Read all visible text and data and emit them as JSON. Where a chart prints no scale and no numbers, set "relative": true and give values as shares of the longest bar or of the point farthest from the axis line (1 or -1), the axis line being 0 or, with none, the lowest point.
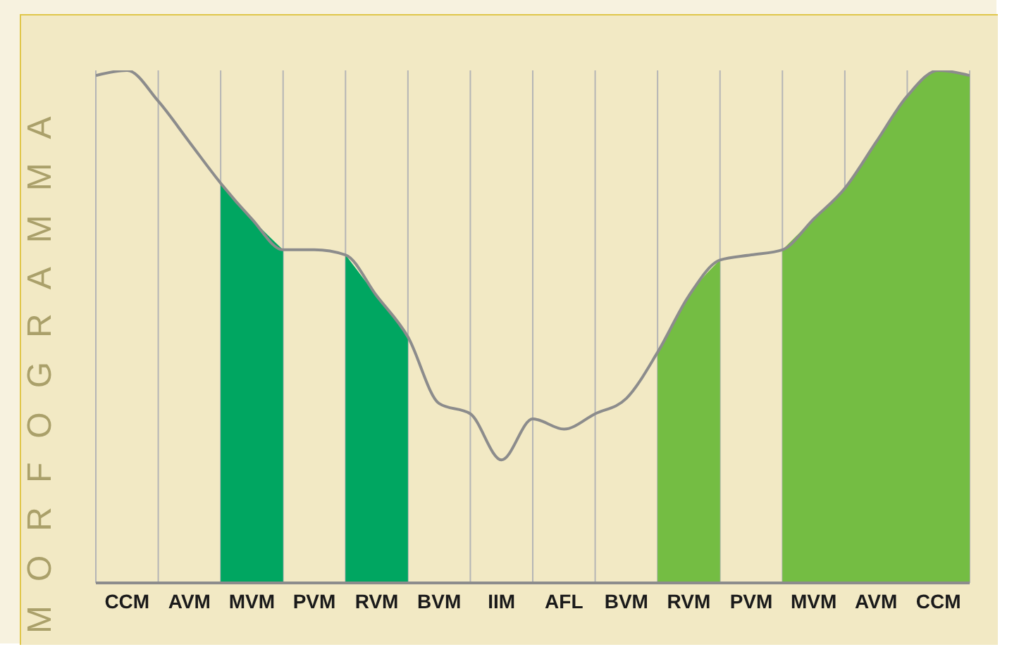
{
  "chart_data": {
    "type": "line",
    "ylabel": "MORFOGRAMMA",
    "relative": true,
    "grid": "x",
    "categories": [
      null,
      "CCM",
      null,
      "AVM",
      null,
      "MVM",
      null,
      "PVM",
      null,
      "RVM",
      null,
      "BVM",
      null,
      "IIM",
      null,
      "AFL",
      null,
      "BVM",
      null,
      "RVM",
      null,
      "PVM",
      null,
      "MVM",
      null,
      "AVM",
      null,
      "CCM",
      null
    ],
    "series": [
      {
        "type": "area",
        "color": "#00a661",
        "values": [
          null,
          null,
          null,
          null,
          0.78,
          0.71,
          0.65,
          null,
          0.64,
          0.56,
          0.48,
          null,
          null,
          null,
          null,
          null,
          null,
          null,
          null,
          null,
          null,
          null,
          null,
          null,
          null,
          null,
          null,
          null,
          null
        ]
      },
      {
        "type": "area",
        "color": "#74bd43",
        "values": [
          null,
          null,
          null,
          null,
          null,
          null,
          null,
          null,
          null,
          null,
          null,
          null,
          null,
          null,
          null,
          null,
          null,
          null,
          0.45,
          0.56,
          0.63,
          null,
          0.65,
          0.71,
          0.77,
          0.86,
          0.95,
          1.0,
          0.99
        ]
      },
      {
        "color": "#8c8c8c",
        "values": [
          0.99,
          1.0,
          0.94,
          0.86,
          0.78,
          0.71,
          0.65,
          0.65,
          0.64,
          0.56,
          0.48,
          0.35,
          0.33,
          0.24,
          0.32,
          0.3,
          0.33,
          0.36,
          0.45,
          0.56,
          0.63,
          0.64,
          0.65,
          0.71,
          0.77,
          0.86,
          0.95,
          1.0,
          0.99
        ]
      }
    ]
  }
}
